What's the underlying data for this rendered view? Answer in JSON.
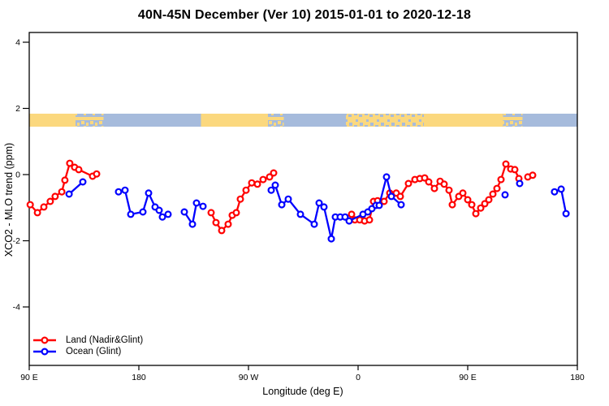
{
  "chart_data": {
    "type": "scatter",
    "title": "40N-45N December (Ver 10)   2015-01-01 to 2020-12-18",
    "xlabel": "Longitude (deg E)",
    "ylabel": "XCO2 - MLO trend (ppm)",
    "x_axis": {
      "min": 90,
      "max": 540,
      "ticks": [
        {
          "lon": 90,
          "label": "90 E"
        },
        {
          "lon": 180,
          "label": "180"
        },
        {
          "lon": 270,
          "label": "90 W"
        },
        {
          "lon": 360,
          "label": "0"
        },
        {
          "lon": 450,
          "label": "90 E"
        },
        {
          "lon": 540,
          "label": "180"
        }
      ]
    },
    "y_axis": {
      "min": -5.8,
      "max": 4.3,
      "ticks": [
        4,
        2,
        0,
        -2,
        -4
      ]
    },
    "grid": false,
    "legend_position": "bottom-left-inside",
    "series": [
      {
        "name": "Land (Nadir&Glint)",
        "color": "#ff0000",
        "marker": "open-circle",
        "segments": [
          [
            [
              90.8,
              -0.91
            ],
            [
              96.7,
              -1.15
            ],
            [
              102,
              -0.98
            ],
            [
              107.3,
              -0.81
            ],
            [
              111.3,
              -0.66
            ],
            [
              116.7,
              -0.52
            ],
            [
              119.3,
              -0.17
            ],
            [
              123.3,
              0.34
            ],
            [
              127.3,
              0.22
            ],
            [
              130.7,
              0.15
            ],
            [
              142,
              -0.05
            ],
            [
              145.3,
              0.02
            ]
          ],
          [
            [
              239.3,
              -1.15
            ],
            [
              243.3,
              -1.45
            ],
            [
              248,
              -1.69
            ],
            [
              253.3,
              -1.5
            ],
            [
              256.7,
              -1.23
            ],
            [
              260,
              -1.15
            ],
            [
              263.3,
              -0.74
            ],
            [
              268,
              -0.47
            ],
            [
              272.7,
              -0.25
            ],
            [
              277.3,
              -0.29
            ],
            [
              282,
              -0.15
            ],
            [
              287.3,
              -0.07
            ],
            [
              290.7,
              0.05
            ]
          ],
          [
            [
              354.7,
              -1.2
            ],
            [
              357.3,
              -1.37
            ],
            [
              361.3,
              -1.37
            ],
            [
              365.3,
              -1.4
            ],
            [
              369.3,
              -1.37
            ],
            [
              372.7,
              -0.81
            ],
            [
              376,
              -0.79
            ],
            [
              381.3,
              -0.81
            ],
            [
              386,
              -0.56
            ],
            [
              391.3,
              -0.56
            ],
            [
              394.7,
              -0.66
            ],
            [
              401.3,
              -0.27
            ],
            [
              406.7,
              -0.15
            ],
            [
              410.7,
              -0.12
            ],
            [
              414.7,
              -0.1
            ],
            [
              418,
              -0.22
            ],
            [
              422.7,
              -0.42
            ],
            [
              427.3,
              -0.2
            ],
            [
              430.7,
              -0.29
            ],
            [
              434.7,
              -0.47
            ],
            [
              437.3,
              -0.91
            ],
            [
              442.7,
              -0.66
            ],
            [
              446,
              -0.56
            ],
            [
              450,
              -0.76
            ],
            [
              453.3,
              -0.91
            ],
            [
              456.7,
              -1.18
            ],
            [
              460.7,
              -1.01
            ],
            [
              464,
              -0.88
            ],
            [
              467.3,
              -0.76
            ],
            [
              470.7,
              -0.59
            ],
            [
              474,
              -0.42
            ],
            [
              477.3,
              -0.15
            ],
            [
              481.3,
              0.32
            ],
            [
              485.3,
              0.17
            ],
            [
              488.7,
              0.15
            ],
            [
              492,
              -0.12
            ]
          ],
          [
            [
              499.3,
              -0.07
            ],
            [
              503.3,
              -0.02
            ]
          ]
        ]
      },
      {
        "name": "Ocean (Glint)",
        "color": "#0000ff",
        "marker": "open-circle",
        "segments": [
          [
            [
              122.7,
              -0.59
            ],
            [
              134,
              -0.22
            ]
          ],
          [
            [
              163.3,
              -0.52
            ],
            [
              168.7,
              -0.47
            ],
            [
              173.3,
              -1.2
            ],
            [
              183.3,
              -1.13
            ],
            [
              188,
              -0.56
            ],
            [
              193.3,
              -0.98
            ],
            [
              196.7,
              -1.08
            ],
            [
              199.3,
              -1.28
            ],
            [
              204,
              -1.2
            ]
          ],
          [
            [
              217.3,
              -1.13
            ],
            [
              224,
              -1.5
            ],
            [
              227.3,
              -0.86
            ],
            [
              232.7,
              -0.96
            ]
          ],
          [
            [
              288.7,
              -0.47
            ],
            [
              292,
              -0.32
            ],
            [
              297.3,
              -0.91
            ],
            [
              302.7,
              -0.74
            ],
            [
              312.7,
              -1.2
            ],
            [
              324,
              -1.5
            ],
            [
              328,
              -0.86
            ],
            [
              332,
              -0.98
            ],
            [
              338,
              -1.94
            ],
            [
              341.3,
              -1.28
            ],
            [
              345.3,
              -1.28
            ],
            [
              349.3,
              -1.28
            ],
            [
              352.7,
              -1.4
            ],
            [
              364,
              -1.2
            ],
            [
              368,
              -1.13
            ],
            [
              371.3,
              -1.03
            ],
            [
              374.7,
              -0.93
            ],
            [
              377.3,
              -0.93
            ],
            [
              383.3,
              -0.07
            ],
            [
              387.3,
              -0.66
            ],
            [
              395.3,
              -0.91
            ]
          ],
          [
            [
              480.7,
              -0.61
            ]
          ],
          [
            [
              492.7,
              -0.27
            ]
          ],
          [
            [
              521.3,
              -0.52
            ],
            [
              526.7,
              -0.44
            ],
            [
              530.7,
              -1.18
            ]
          ]
        ]
      }
    ],
    "land_ocean_strip": {
      "description": "horizontal land/ocean map band near y=1.6 ppm",
      "land_color": "#fbd87e",
      "ocean_color": "#a6bbdc",
      "segments": [
        {
          "from": 90,
          "to": 128,
          "type": "land"
        },
        {
          "from": 128,
          "to": 151,
          "type": "mixed"
        },
        {
          "from": 151,
          "to": 231,
          "type": "ocean"
        },
        {
          "from": 231,
          "to": 286,
          "type": "land"
        },
        {
          "from": 286,
          "to": 299,
          "type": "mixed"
        },
        {
          "from": 299,
          "to": 350,
          "type": "ocean"
        },
        {
          "from": 350,
          "to": 414,
          "type": "mixed_land"
        },
        {
          "from": 414,
          "to": 479,
          "type": "land"
        },
        {
          "from": 479,
          "to": 495,
          "type": "mixed"
        },
        {
          "from": 495,
          "to": 540,
          "type": "ocean"
        }
      ]
    },
    "axis_color": "#000000"
  },
  "legend": {
    "items": [
      {
        "label": "Land (Nadir&Glint)",
        "color": "#ff0000"
      },
      {
        "label": "Ocean (Glint)",
        "color": "#0000ff"
      }
    ]
  }
}
